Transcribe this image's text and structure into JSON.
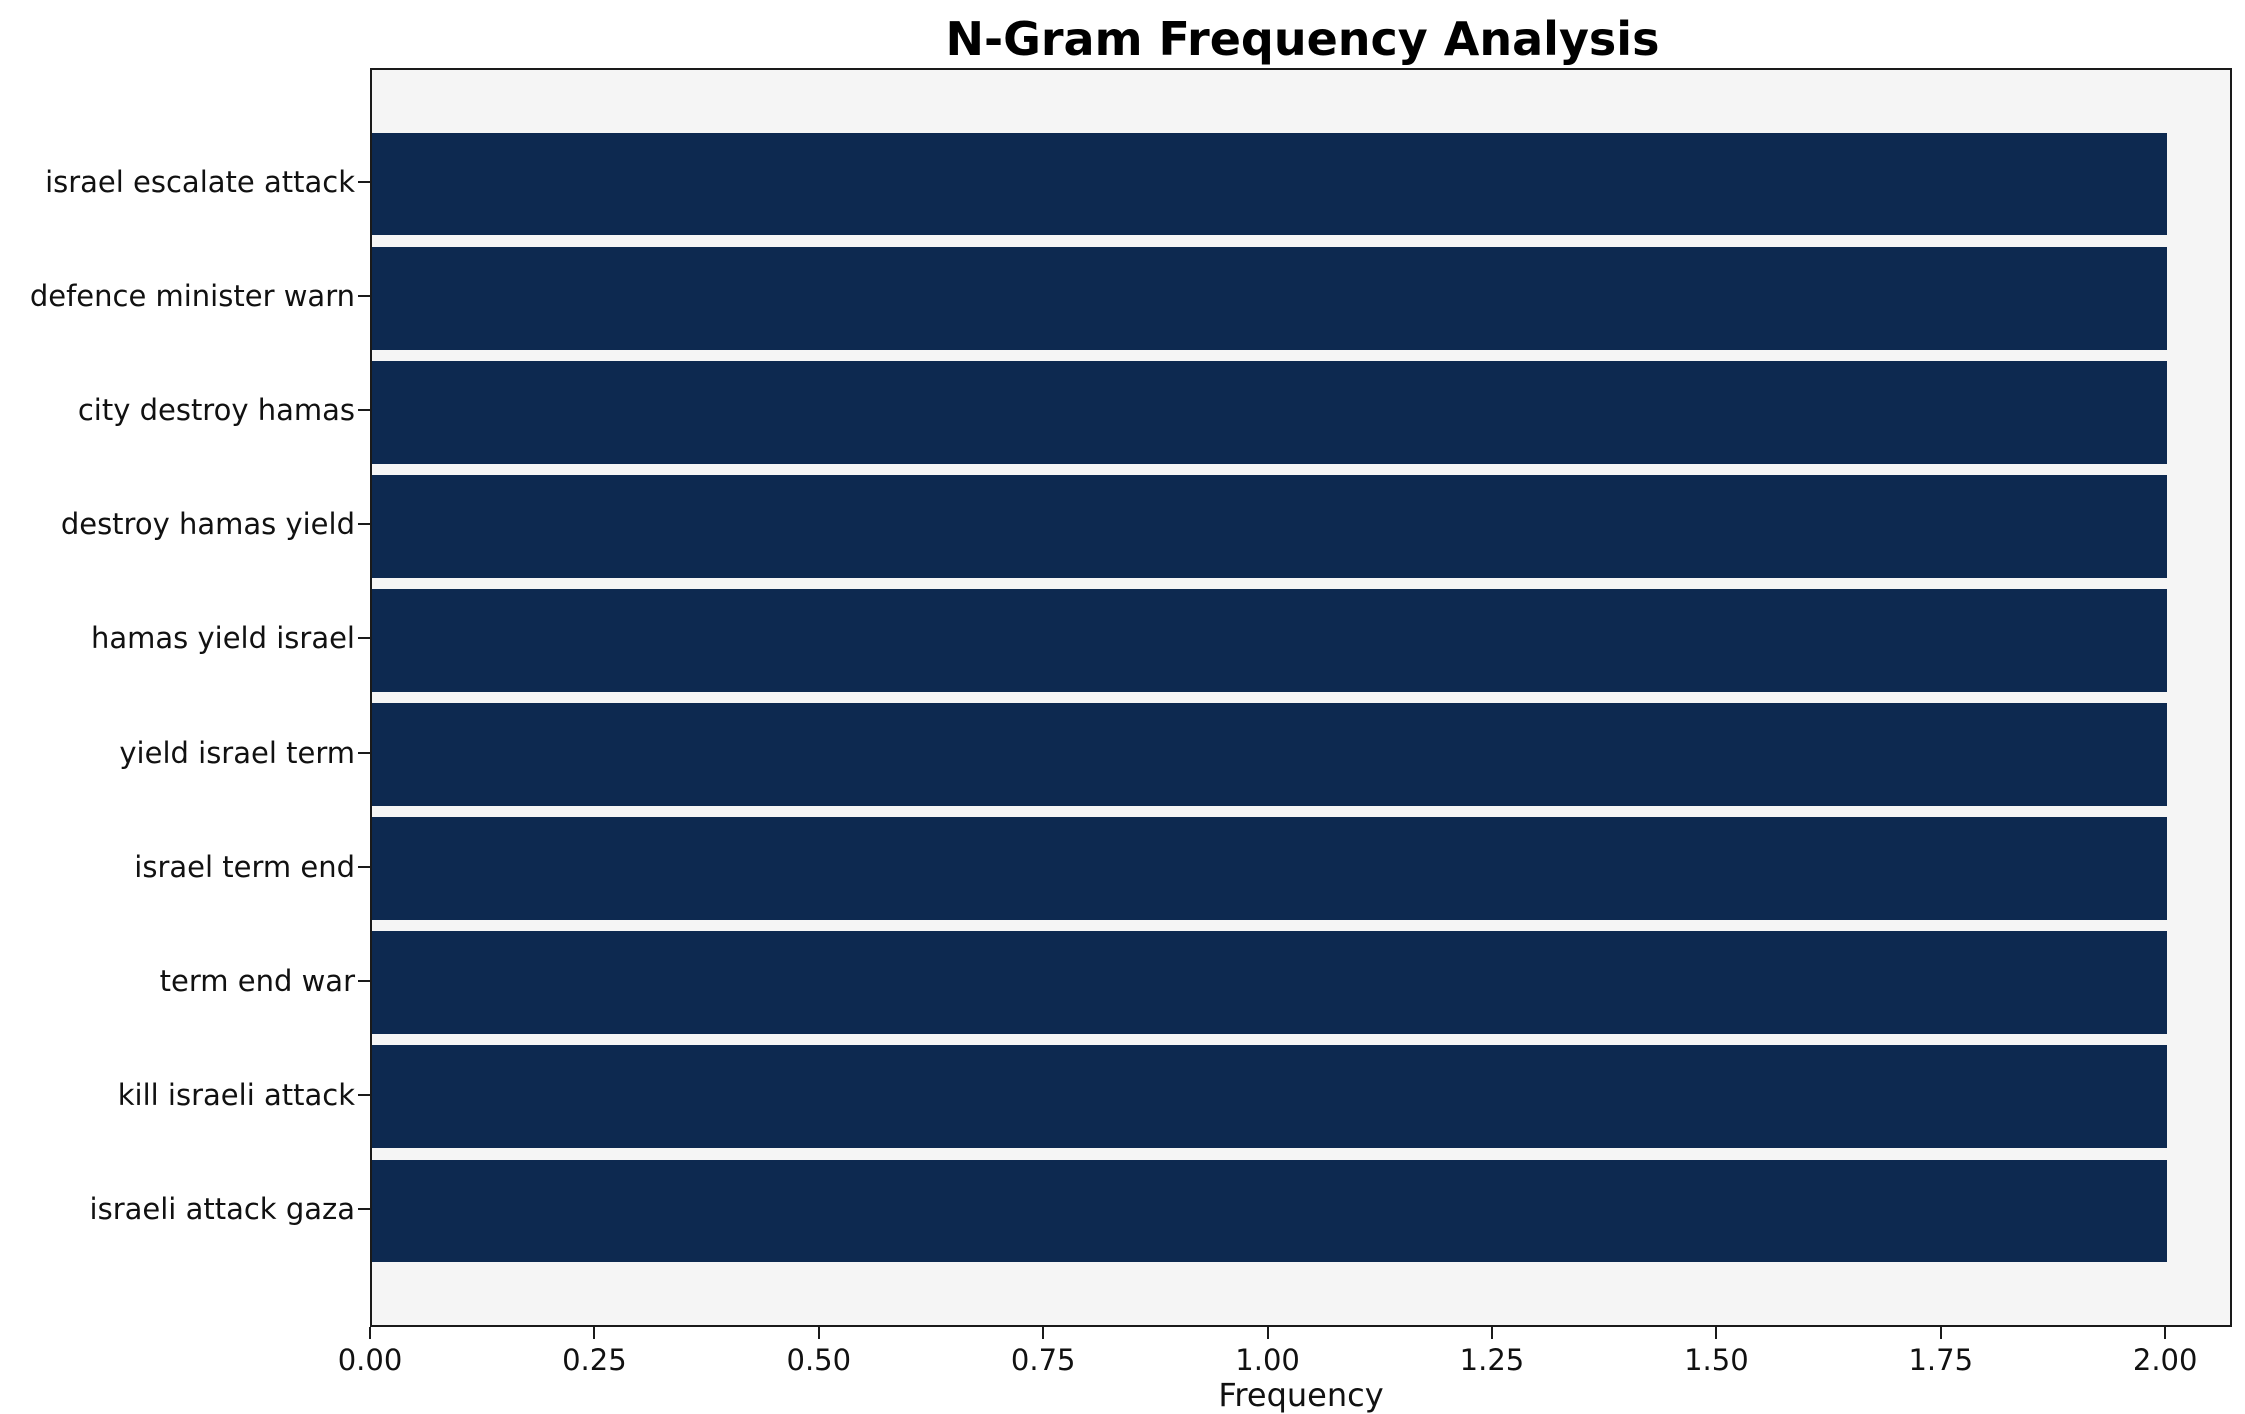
{
  "chart_data": {
    "type": "bar",
    "orientation": "horizontal",
    "title": "N-Gram Frequency Analysis",
    "xlabel": "Frequency",
    "ylabel": "",
    "categories": [
      "israel escalate attack",
      "defence minister warn",
      "city destroy hamas",
      "destroy hamas yield",
      "hamas yield israel",
      "yield israel term",
      "israel term end",
      "term end war",
      "kill israeli attack",
      "israeli attack gaza"
    ],
    "values": [
      2,
      2,
      2,
      2,
      2,
      2,
      2,
      2,
      2,
      2
    ],
    "xlim": [
      0,
      2.07
    ],
    "xticks": [
      0.0,
      0.25,
      0.5,
      0.75,
      1.0,
      1.25,
      1.5,
      1.75,
      2.0
    ],
    "xtick_labels": [
      "0.00",
      "0.25",
      "0.50",
      "0.75",
      "1.00",
      "1.25",
      "1.50",
      "1.75",
      "2.00"
    ],
    "bar_color": "#0d2950",
    "plot_background": "#f5f5f5",
    "grid": false,
    "legend": "none"
  }
}
